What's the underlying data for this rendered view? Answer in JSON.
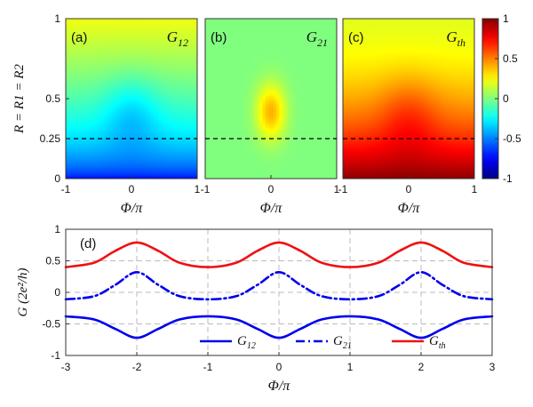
{
  "chart_data": [
    {
      "type": "heatmap",
      "panel_label": "(a)",
      "title": "G12",
      "title_main": "G",
      "title_sub": "12",
      "x_range": [
        -1,
        1
      ],
      "y_range": [
        0,
        1
      ],
      "x_ticks": [
        "-1",
        "0",
        "1"
      ],
      "y_ticks": [
        "0",
        "0.25",
        "0.5",
        "1"
      ],
      "y_label": "R = R1 = R2",
      "x_label": "Φ/π",
      "reference_line_y": 0.25,
      "value_at_R0": -0.78,
      "value_at_R1": 0.22,
      "dip_center_phi": 0
    },
    {
      "type": "heatmap",
      "panel_label": "(b)",
      "title": "G21",
      "title_main": "G",
      "title_sub": "21",
      "x_range": [
        -1,
        1
      ],
      "y_range": [
        0,
        1
      ],
      "x_ticks": [
        "-1",
        "0",
        "1"
      ],
      "x_label": "Φ/π",
      "reference_line_y": 0.25,
      "background_value": 0.0,
      "peak_value": 0.4,
      "peak_phi": 0,
      "peak_R": 0.42
    },
    {
      "type": "heatmap",
      "panel_label": "(c)",
      "title": "Gth",
      "title_main": "G",
      "title_sub": "th",
      "x_range": [
        -1,
        1
      ],
      "y_range": [
        0,
        1
      ],
      "x_ticks": [
        "-1",
        "0",
        "1"
      ],
      "x_label": "Φ/π",
      "reference_line_y": 0.25,
      "value_at_R0": 0.98,
      "value_at_R1": 0.2,
      "colorbar": {
        "range": [
          -1,
          1
        ],
        "ticks": [
          "1",
          "0.5",
          "0",
          "-0.5",
          "-1"
        ],
        "colormap": "jet"
      }
    },
    {
      "type": "line",
      "panel_label": "(d)",
      "x_range": [
        -3,
        3
      ],
      "y_range": [
        -1,
        1
      ],
      "x_ticks": [
        "-3",
        "-2",
        "-1",
        "0",
        "1",
        "2",
        "3"
      ],
      "y_ticks": [
        "1",
        "0.5",
        "0",
        "-0.5",
        "-1"
      ],
      "x_label": "Φ/π",
      "y_label": "G (2e²/h)",
      "grid": true,
      "legend_position": "bottom-center",
      "series": [
        {
          "name": "G12",
          "name_main": "G",
          "name_sub": "12",
          "color": "#0000ee",
          "style": "solid",
          "x": [
            -3,
            -2.6,
            -2.3,
            -2,
            -1.7,
            -1.4,
            -1,
            -0.6,
            -0.3,
            0,
            0.3,
            0.6,
            1,
            1.4,
            1.7,
            2,
            2.3,
            2.6,
            3
          ],
          "y": [
            -0.38,
            -0.43,
            -0.58,
            -0.72,
            -0.58,
            -0.43,
            -0.38,
            -0.43,
            -0.58,
            -0.72,
            -0.58,
            -0.43,
            -0.38,
            -0.43,
            -0.58,
            -0.72,
            -0.58,
            -0.43,
            -0.38
          ]
        },
        {
          "name": "G21",
          "name_main": "G",
          "name_sub": "21",
          "color": "#0000ee",
          "style": "dashdot",
          "x": [
            -3,
            -2.6,
            -2.3,
            -2,
            -1.7,
            -1.4,
            -1,
            -0.6,
            -0.3,
            0,
            0.3,
            0.6,
            1,
            1.4,
            1.7,
            2,
            2.3,
            2.6,
            3
          ],
          "y": [
            -0.11,
            -0.06,
            0.12,
            0.32,
            0.12,
            -0.06,
            -0.11,
            -0.06,
            0.12,
            0.32,
            0.12,
            -0.06,
            -0.11,
            -0.06,
            0.12,
            0.32,
            0.12,
            -0.06,
            -0.11
          ]
        },
        {
          "name": "Gth",
          "name_main": "G",
          "name_sub": "th",
          "color": "#ee1111",
          "style": "solid",
          "x": [
            -3,
            -2.6,
            -2.3,
            -2,
            -1.7,
            -1.4,
            -1,
            -0.6,
            -0.3,
            0,
            0.3,
            0.6,
            1,
            1.4,
            1.7,
            2,
            2.3,
            2.6,
            3
          ],
          "y": [
            0.4,
            0.47,
            0.66,
            0.79,
            0.66,
            0.47,
            0.4,
            0.47,
            0.66,
            0.79,
            0.66,
            0.47,
            0.4,
            0.47,
            0.66,
            0.79,
            0.66,
            0.47,
            0.4
          ]
        }
      ]
    }
  ]
}
